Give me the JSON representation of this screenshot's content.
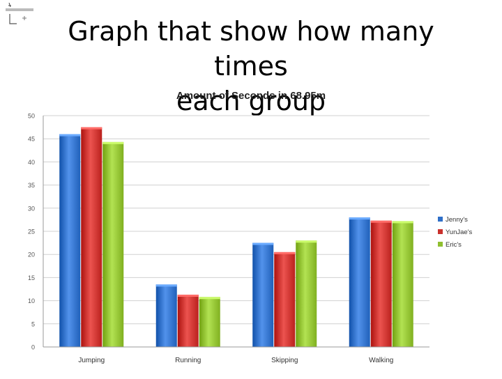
{
  "slide": {
    "title_line1": "Graph that show how many times",
    "title_line2": "each group"
  },
  "chart_data": {
    "type": "bar",
    "title": "Amount of Seconds in  68.95m",
    "xlabel": "",
    "ylabel": "",
    "categories": [
      "Jumping",
      "Running",
      "Skipping",
      "Walking"
    ],
    "series": [
      {
        "name": "Jenny's",
        "color": "#2f6fc8",
        "values": [
          46,
          13.5,
          22.5,
          28
        ]
      },
      {
        "name": "YunJae's",
        "color": "#c9302c",
        "values": [
          47.5,
          11.3,
          20.5,
          27.3
        ]
      },
      {
        "name": "Eric's",
        "color": "#8fbf2f",
        "values": [
          44.3,
          10.8,
          23,
          27.2
        ]
      }
    ],
    "ylim": [
      0,
      50
    ],
    "yticks": [
      0,
      5,
      10,
      15,
      20,
      25,
      30,
      35,
      40,
      45,
      50
    ],
    "grid": true,
    "legend": "right"
  }
}
